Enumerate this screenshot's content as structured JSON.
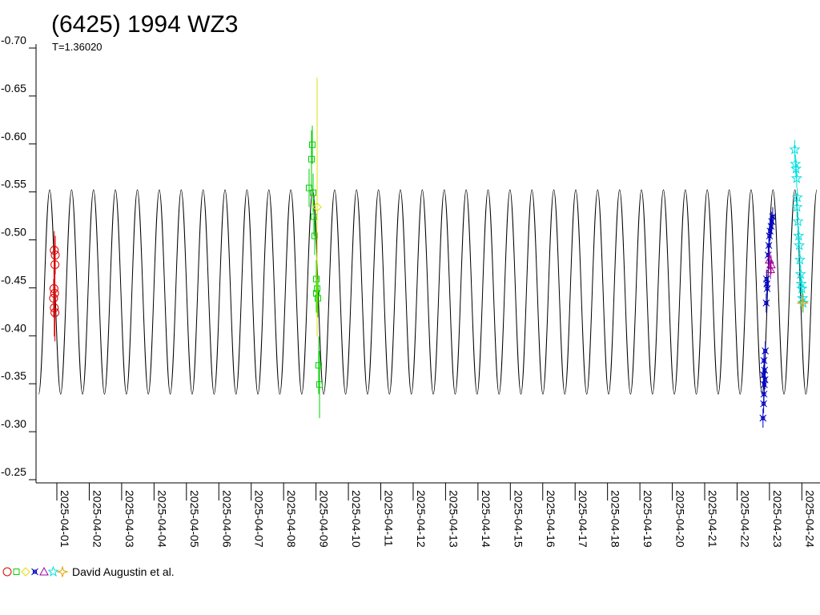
{
  "chart_data": {
    "type": "lightcurve",
    "title": "(6425) 1994 WZ3",
    "subtitle": "T=1.36020",
    "legend_text": "David Augustin et al.",
    "xlim": [
      0.357,
      24.56
    ],
    "xticks": [
      {
        "value": 1,
        "label": "2025-04-01"
      },
      {
        "value": 2,
        "label": "2025-04-02"
      },
      {
        "value": 3,
        "label": "2025-04-03"
      },
      {
        "value": 4,
        "label": "2025-04-04"
      },
      {
        "value": 5,
        "label": "2025-04-05"
      },
      {
        "value": 6,
        "label": "2025-04-06"
      },
      {
        "value": 7,
        "label": "2025-04-07"
      },
      {
        "value": 8,
        "label": "2025-04-08"
      },
      {
        "value": 9,
        "label": "2025-04-09"
      },
      {
        "value": 10,
        "label": "2025-04-10"
      },
      {
        "value": 11,
        "label": "2025-04-11"
      },
      {
        "value": 12,
        "label": "2025-04-12"
      },
      {
        "value": 13,
        "label": "2025-04-13"
      },
      {
        "value": 14,
        "label": "2025-04-14"
      },
      {
        "value": 15,
        "label": "2025-04-15"
      },
      {
        "value": 16,
        "label": "2025-04-16"
      },
      {
        "value": 17,
        "label": "2025-04-17"
      },
      {
        "value": 18,
        "label": "2025-04-18"
      },
      {
        "value": 19,
        "label": "2025-04-19"
      },
      {
        "value": 20,
        "label": "2025-04-20"
      },
      {
        "value": 21,
        "label": "2025-04-21"
      },
      {
        "value": 22,
        "label": "2025-04-22"
      },
      {
        "value": 23,
        "label": "2025-04-23"
      },
      {
        "value": 24,
        "label": "2025-04-24"
      }
    ],
    "ylim": [
      -0.7,
      -0.25
    ],
    "y_inverted": true,
    "yticks": [
      {
        "value": -0.7,
        "label": "-0.70"
      },
      -0.65,
      {
        "value": -0.6,
        "label": "-0.60"
      },
      -0.55,
      {
        "value": -0.5,
        "label": "-0.50"
      },
      -0.45,
      {
        "value": -0.4,
        "label": "-0.40"
      },
      -0.35,
      {
        "value": -0.3,
        "label": "-0.30"
      },
      -0.25
    ],
    "model": {
      "color": "#000000",
      "x": [
        0.44,
        0.778,
        1.117,
        1.455,
        1.793,
        2.132,
        2.47,
        2.808,
        3.147,
        3.485,
        3.824,
        4.162,
        4.5,
        4.839,
        5.177,
        5.515,
        5.854,
        6.192,
        6.53,
        6.869,
        7.207,
        7.545,
        7.884,
        8.222,
        8.56,
        8.899,
        9.237,
        9.575,
        9.914,
        10.252,
        10.591,
        10.929,
        11.267,
        11.606,
        11.944,
        12.282,
        12.621,
        12.959,
        13.297,
        13.636,
        13.974,
        14.312,
        14.651,
        14.989,
        15.327,
        15.666,
        16.004,
        16.342,
        16.681,
        17.019,
        17.358,
        17.696,
        18.034,
        18.373,
        18.711,
        19.049,
        19.388,
        19.726,
        20.064,
        20.403,
        20.741,
        21.079,
        21.418,
        21.756,
        22.094,
        22.433,
        22.771,
        23.109,
        23.448,
        23.786,
        24.125,
        24.463
      ],
      "values": [
        -0.335,
        -0.548,
        -0.335,
        -0.548,
        -0.335,
        -0.548,
        -0.335,
        -0.548,
        -0.335,
        -0.548,
        -0.335,
        -0.548,
        -0.335,
        -0.548,
        -0.335,
        -0.548,
        -0.335,
        -0.548,
        -0.335,
        -0.548,
        -0.335,
        -0.548,
        -0.335,
        -0.548,
        -0.335,
        -0.548,
        -0.335,
        -0.548,
        -0.335,
        -0.548,
        -0.335,
        -0.548,
        -0.335,
        -0.548,
        -0.335,
        -0.548,
        -0.335,
        -0.548,
        -0.335,
        -0.548,
        -0.335,
        -0.548,
        -0.335,
        -0.548,
        -0.335,
        -0.548,
        -0.335,
        -0.548,
        -0.335,
        -0.548,
        -0.335,
        -0.548,
        -0.335,
        -0.548,
        -0.335,
        -0.548,
        -0.335,
        -0.548,
        -0.335,
        -0.548,
        -0.335,
        -0.548,
        -0.335,
        -0.548,
        -0.335,
        -0.548,
        -0.335,
        -0.548,
        -0.335,
        -0.548,
        -0.335,
        -0.548
      ]
    },
    "series": [
      {
        "color": "#e00000",
        "marker": "circle",
        "x": [
          0.92,
          0.95,
          0.94,
          0.91,
          0.93,
          0.9,
          0.92,
          0.94
        ],
        "values": [
          -0.485,
          -0.48,
          -0.47,
          -0.445,
          -0.44,
          -0.435,
          -0.425,
          -0.42
        ],
        "errors": [
          0.02,
          0.02,
          0.02,
          0.02,
          0.02,
          0.02,
          0.03,
          0.03
        ]
      },
      {
        "color": "#00d000",
        "marker": "square",
        "x": [
          8.787,
          8.861,
          8.886,
          8.911,
          8.936,
          8.96,
          9.01,
          9.035,
          9.059,
          9.01,
          9.084,
          9.109
        ],
        "values": [
          -0.55,
          -0.58,
          -0.595,
          -0.545,
          -0.52,
          -0.5,
          -0.455,
          -0.445,
          -0.435,
          -0.44,
          -0.365,
          -0.345
        ],
        "errors": [
          0.02,
          0.03,
          0.02,
          0.02,
          0.02,
          0.02,
          0.02,
          0.02,
          0.02,
          0.02,
          0.03,
          0.035
        ]
      },
      {
        "color": "#e0e000",
        "marker": "diamond",
        "x": [
          9.035
        ],
        "values": [
          -0.53
        ],
        "errors": [
          0.135
        ]
      },
      {
        "color": "#0000c0",
        "marker": "cross",
        "x": [
          22.8,
          22.82,
          22.83,
          22.84,
          22.82,
          22.86,
          22.85,
          22.83,
          22.87,
          22.9,
          22.92,
          22.91,
          22.93,
          22.96,
          22.98,
          23.0,
          23.02,
          23.05,
          23.07,
          23.1
        ],
        "values": [
          -0.31,
          -0.325,
          -0.335,
          -0.345,
          -0.355,
          -0.35,
          -0.36,
          -0.37,
          -0.38,
          -0.43,
          -0.45,
          -0.455,
          -0.445,
          -0.48,
          -0.49,
          -0.5,
          -0.505,
          -0.51,
          -0.515,
          -0.52
        ],
        "errors": [
          0.01,
          0.01,
          0.01,
          0.01,
          0.01,
          0.01,
          0.01,
          0.01,
          0.01,
          0.01,
          0.01,
          0.01,
          0.01,
          0.01,
          0.01,
          0.01,
          0.01,
          0.01,
          0.01,
          0.01
        ]
      },
      {
        "color": "#a000a0",
        "marker": "triangle",
        "x": [
          23.0,
          23.05,
          23.03
        ],
        "values": [
          -0.475,
          -0.47,
          -0.465
        ],
        "errors": [
          0.01,
          0.01,
          0.01
        ]
      },
      {
        "color": "#00e0e0",
        "marker": "star",
        "x": [
          23.78,
          23.8,
          23.82,
          23.84,
          23.86,
          23.85,
          23.88,
          23.9,
          23.92,
          23.94,
          23.96,
          23.98,
          24.0,
          24.02,
          24.04
        ],
        "values": [
          -0.59,
          -0.575,
          -0.57,
          -0.56,
          -0.54,
          -0.53,
          -0.515,
          -0.5,
          -0.49,
          -0.475,
          -0.46,
          -0.45,
          -0.445,
          -0.435,
          -0.43
        ],
        "errors": [
          0.01,
          0.01,
          0.01,
          0.01,
          0.01,
          0.01,
          0.01,
          0.01,
          0.01,
          0.01,
          0.01,
          0.01,
          0.01,
          0.01,
          0.01
        ]
      },
      {
        "color": "#e0a000",
        "marker": "star4",
        "x": [
          24.02
        ],
        "values": [
          -0.43
        ],
        "errors": [
          0.01
        ]
      }
    ]
  }
}
